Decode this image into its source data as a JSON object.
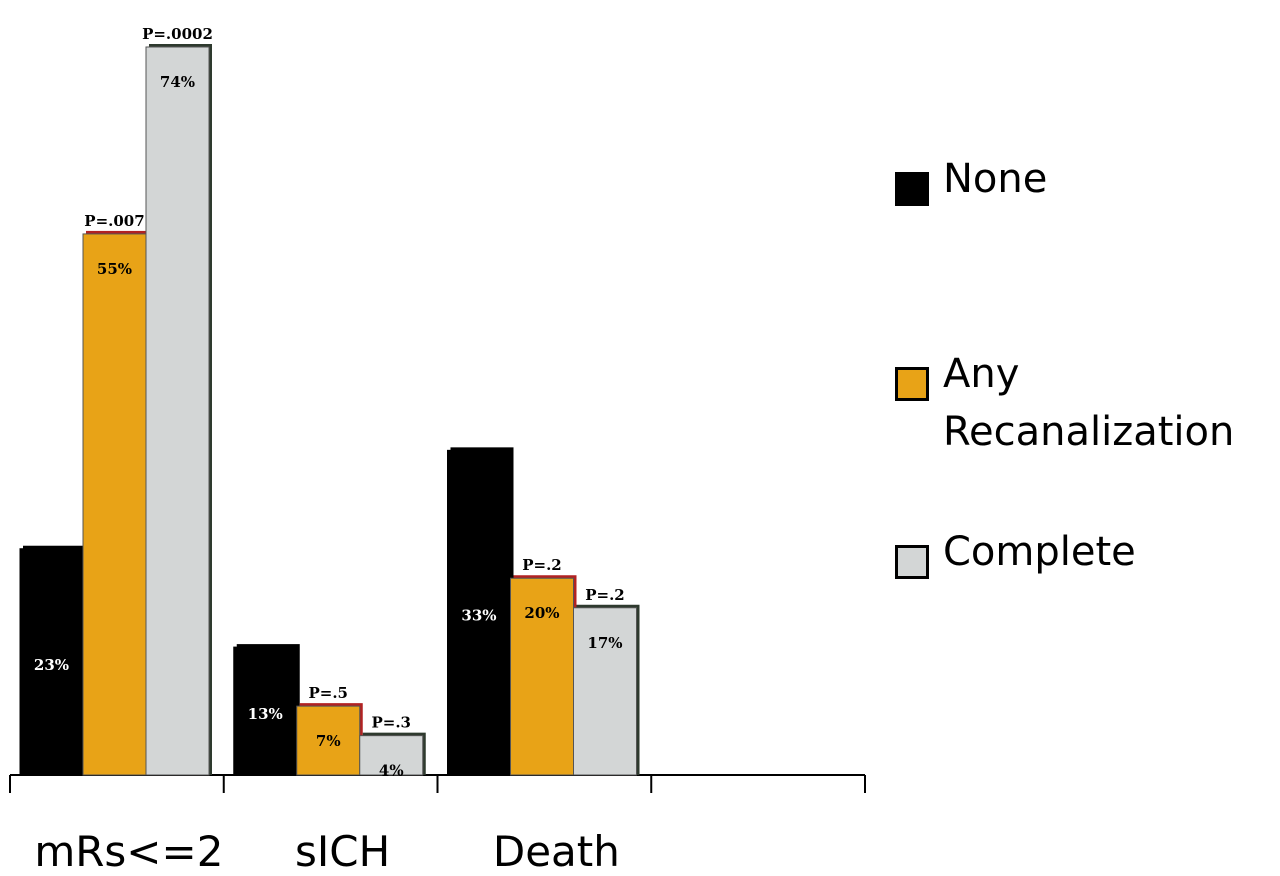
{
  "chart_data": {
    "type": "bar",
    "categories": [
      "mRs<=2",
      "sICH",
      "Death"
    ],
    "series": [
      {
        "name": "None",
        "color": "#000000",
        "values": [
          23,
          13,
          33
        ],
        "labels": [
          "23%",
          "13%",
          "33%"
        ],
        "pvalues": [
          "",
          "",
          ""
        ]
      },
      {
        "name": "Any Recanalization",
        "color": "#E8A317",
        "values": [
          55,
          7,
          20
        ],
        "labels": [
          "55%",
          "7%",
          "20%"
        ],
        "pvalues": [
          "P=.007",
          "P=.5",
          "P=.2"
        ]
      },
      {
        "name": "Complete",
        "color": "#D3D6D6",
        "values": [
          74,
          4,
          17
        ],
        "labels": [
          "74%",
          "4%",
          "17%"
        ],
        "pvalues": [
          "P=.0002",
          "P=.3",
          "P=.2"
        ]
      }
    ],
    "ylim": [
      0,
      74
    ],
    "grid": false,
    "legend_position": "right"
  },
  "legend": {
    "items": [
      {
        "label": "None",
        "color": "#000000"
      },
      {
        "label": "Any Recanalization",
        "color": "#E8A317"
      },
      {
        "label": "Complete",
        "color": "#D3D6D6"
      }
    ]
  }
}
